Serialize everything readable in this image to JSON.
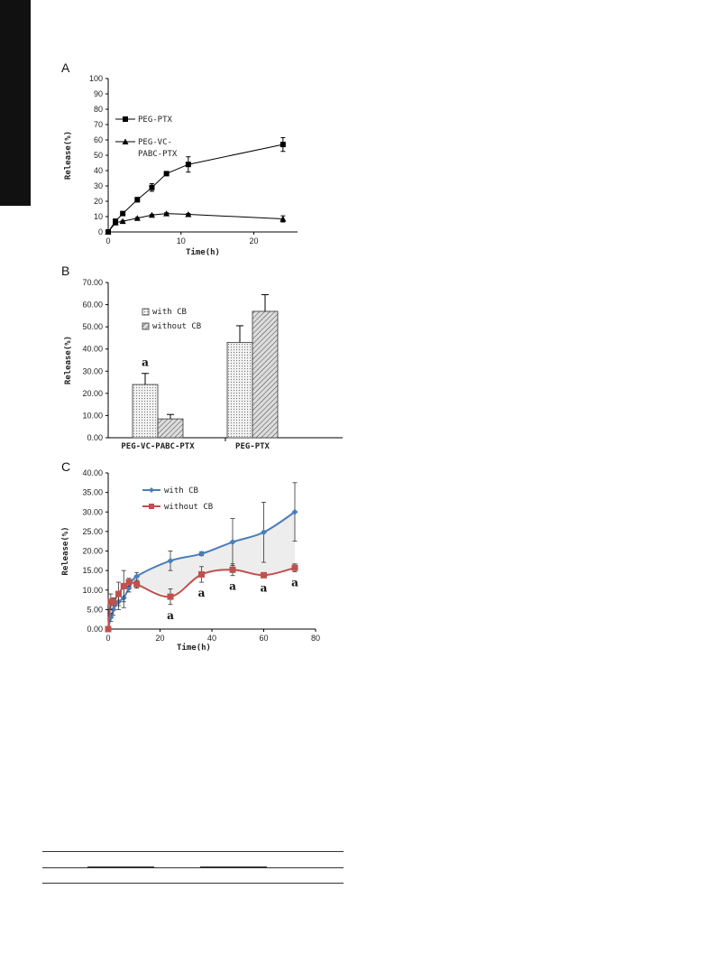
{
  "figure": {
    "side_tab_color": "#111111"
  },
  "chart_data": [
    {
      "panel": "A",
      "type": "line",
      "xlabel": "Time(h)",
      "ylabel": "Release(%)",
      "xlim": [
        0,
        26
      ],
      "ylim": [
        0,
        100
      ],
      "xticks": [
        0,
        10,
        20
      ],
      "yticks": [
        0,
        10,
        20,
        30,
        40,
        50,
        60,
        70,
        80,
        90,
        100
      ],
      "legend_placement": "top-left",
      "series": [
        {
          "name": "PEG-PTX",
          "marker": "square",
          "color": "#000000",
          "x": [
            0,
            1,
            2,
            4,
            6,
            8,
            11,
            24
          ],
          "y": [
            0,
            7,
            12,
            21,
            29,
            38,
            44,
            57
          ],
          "err": [
            0,
            1,
            1,
            1.5,
            2.5,
            1,
            5,
            4.5
          ]
        },
        {
          "name": "PEG-VC-PABC-PTX",
          "name_lines": [
            "PEG-VC-",
            "PABC-PTX"
          ],
          "marker": "triangle",
          "color": "#000000",
          "x": [
            0,
            1,
            2,
            4,
            6,
            8,
            11,
            24
          ],
          "y": [
            0,
            6,
            7,
            9,
            11,
            12,
            11.5,
            8.5
          ],
          "err": [
            0,
            1,
            0.5,
            0.5,
            0.5,
            0.5,
            0.5,
            2
          ]
        }
      ]
    },
    {
      "panel": "B",
      "type": "bar",
      "ylabel": "Release(%)",
      "ylim": [
        0,
        70
      ],
      "yticks": [
        "0.00",
        "10.00",
        "20.00",
        "30.00",
        "40.00",
        "50.00",
        "60.00",
        "70.00"
      ],
      "categories": [
        "PEG-VC-PABC-PTX",
        "PEG-PTX"
      ],
      "legend_placement": "top-left",
      "annotations": [
        {
          "text": "a",
          "category": 0
        }
      ],
      "series": [
        {
          "name": "with CB",
          "pattern": "dots",
          "values": [
            24,
            43
          ],
          "err": [
            5,
            7.5
          ]
        },
        {
          "name": "without CB",
          "pattern": "hatch",
          "values": [
            8.5,
            57
          ],
          "err": [
            2,
            7.5
          ]
        }
      ]
    },
    {
      "panel": "C",
      "type": "line",
      "xlabel": "Time(h)",
      "ylabel": "Release(%)",
      "xlim": [
        0,
        80
      ],
      "ylim": [
        0,
        40
      ],
      "xticks": [
        0,
        20,
        40,
        60,
        80
      ],
      "yticks": [
        "0.00",
        "5.00",
        "10.00",
        "15.00",
        "20.00",
        "25.00",
        "30.00",
        "35.00",
        "40.00"
      ],
      "legend_placement": "top-left",
      "annotations": [
        {
          "text": "a",
          "x": 24
        },
        {
          "text": "a",
          "x": 36
        },
        {
          "text": "a",
          "x": 48
        },
        {
          "text": "a",
          "x": 60
        },
        {
          "text": "a",
          "x": 72
        }
      ],
      "series": [
        {
          "name": "with CB",
          "color": "#4a7ebb",
          "marker": "diamond",
          "x": [
            0,
            1,
            2,
            4,
            6,
            8,
            11,
            24,
            36,
            48,
            60,
            72
          ],
          "y": [
            0,
            3,
            5,
            7,
            8,
            10.5,
            13.5,
            17.5,
            19.3,
            22.3,
            24.8,
            30
          ],
          "err": [
            0,
            1,
            1.5,
            2,
            2.5,
            1,
            1,
            2.5,
            0.5,
            6,
            7.7,
            7.5
          ]
        },
        {
          "name": "without CB",
          "color": "#c0504d",
          "marker": "square",
          "x": [
            0,
            1,
            2,
            4,
            6,
            8,
            11,
            24,
            36,
            48,
            60,
            72
          ],
          "y": [
            0,
            7,
            7,
            9,
            11,
            12,
            11.5,
            8.3,
            14,
            15.2,
            13.8,
            15.7
          ],
          "err": [
            0,
            2,
            1,
            3,
            4,
            1,
            1,
            2,
            2,
            1.5,
            0.5,
            1
          ]
        }
      ]
    }
  ]
}
